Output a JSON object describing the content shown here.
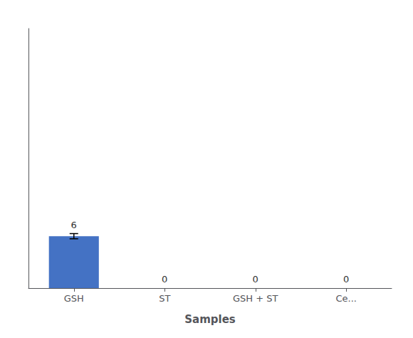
{
  "chart_data": {
    "type": "bar",
    "xlabel": "Samples",
    "categories": [
      "GSH",
      "ST",
      "GSH + ST",
      "Ce..."
    ],
    "values": [
      6,
      0,
      0,
      0
    ],
    "errors": [
      0.3,
      0,
      0,
      0
    ],
    "color": "#4472C4",
    "ylim": [
      0,
      30
    ],
    "data_labels": true,
    "tick_labels": "x",
    "grid": false
  }
}
